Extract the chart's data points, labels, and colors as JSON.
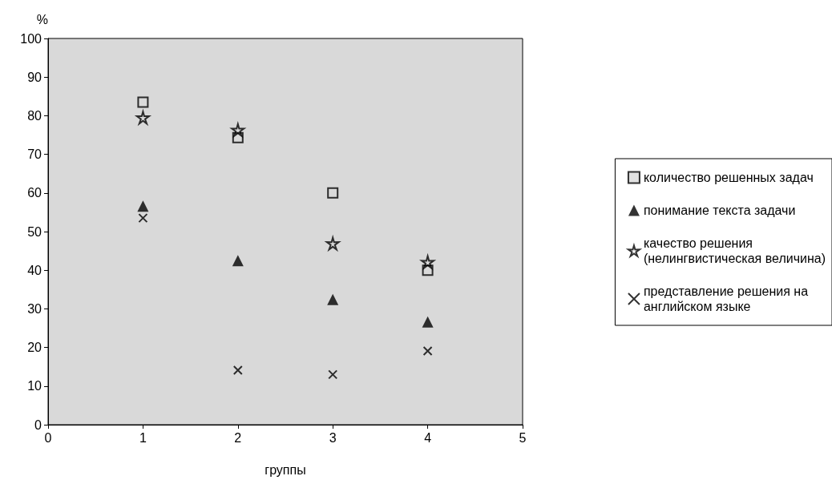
{
  "chart_data": {
    "type": "scatter",
    "xlabel": "группы",
    "ylabel": "%",
    "x": [
      1,
      2,
      3,
      4
    ],
    "xlim": [
      0,
      5
    ],
    "xticks": [
      0,
      1,
      2,
      3,
      4,
      5
    ],
    "ylim": [
      0,
      100
    ],
    "yticks": [
      0,
      10,
      20,
      30,
      40,
      50,
      60,
      70,
      80,
      90,
      100
    ],
    "grid": false,
    "legend": "right",
    "series": [
      {
        "name": "количество решенных задач",
        "color": "#000000",
        "marker": "square",
        "values": [
          83.5,
          74.3,
          60,
          40
        ]
      },
      {
        "name": "понимание текста задачи",
        "color": "#000000",
        "marker": "triangle",
        "values": [
          56.6,
          42.5,
          32.4,
          26.6
        ]
      },
      {
        "name": "качество решения (нелингвистическая величина)",
        "color": "#000000",
        "marker": "star",
        "values": [
          79.5,
          76.3,
          46.9,
          42.1
        ]
      },
      {
        "name": "представление решения на английском языке",
        "color": "#000000",
        "marker": "cross",
        "values": [
          53.5,
          14.1,
          13,
          19.1
        ]
      }
    ]
  }
}
